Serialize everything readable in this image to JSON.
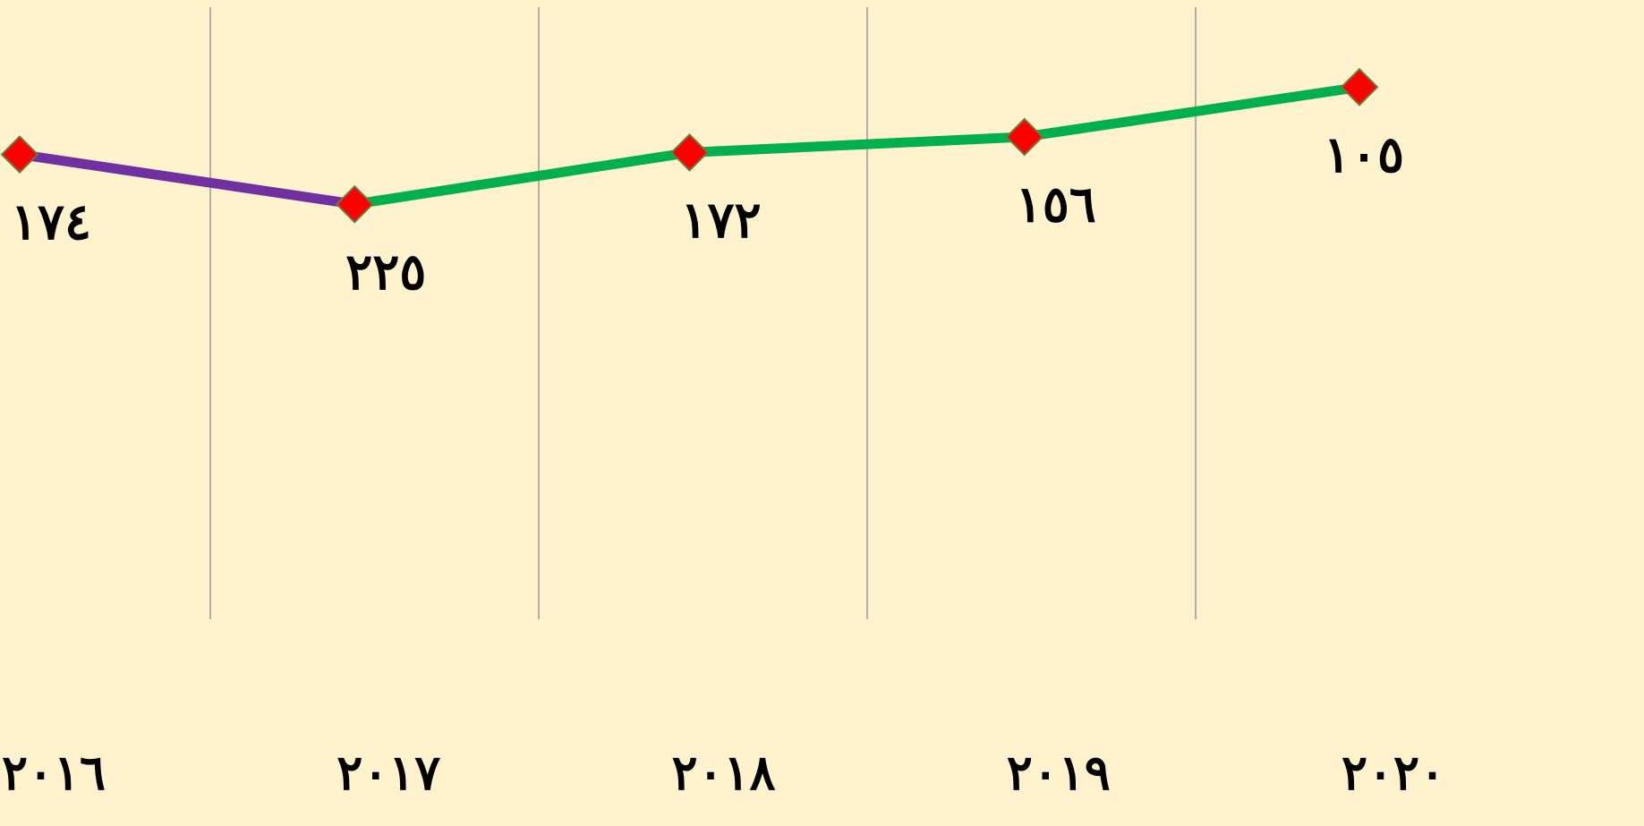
{
  "chart_data": {
    "type": "line",
    "categories": [
      "٢٠١٦",
      "٢٠١٧",
      "٢٠١٨",
      "٢٠١٩",
      "٢٠٢٠"
    ],
    "series": [
      {
        "values": [
          174,
          225,
          172,
          156,
          105
        ],
        "value_labels": [
          "١٧٤",
          "٢٢٥",
          "١٧٢",
          "١٥٦",
          "١٠٥"
        ],
        "segment_colors": [
          "#7030a0",
          "#00b050",
          "#00b050",
          "#00b050"
        ],
        "marker_color": "#ff0000"
      }
    ],
    "ylim": [
      650,
      25
    ],
    "vertical_grid": true
  }
}
